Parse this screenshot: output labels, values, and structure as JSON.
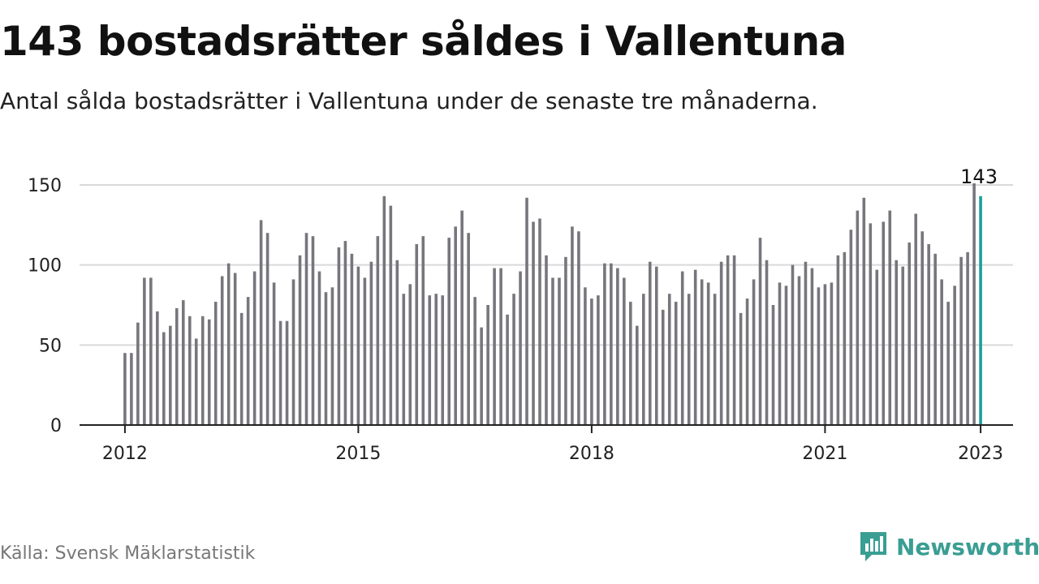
{
  "title": "143 bostadsrätter såldes i Vallentuna",
  "subtitle": "Antal sålda bostadsrätter i Vallentuna under de senaste tre månaderna.",
  "source": "Källa: Svensk Mäklarstatistik",
  "brand": {
    "name": "Newsworthy",
    "icon": "newsworthy-logo-icon",
    "color": "#3a9e93"
  },
  "chart_data": {
    "type": "bar",
    "title": "143 bostadsrätter såldes i Vallentuna",
    "subtitle": "Antal sålda bostadsrätter i Vallentuna under de senaste tre månaderna.",
    "xlabel": "",
    "ylabel": "",
    "ylim": [
      0,
      150
    ],
    "yticks": [
      0,
      50,
      100,
      150
    ],
    "xlim": [
      "2011-06",
      "2023-06"
    ],
    "xticks": [
      "2012",
      "2015",
      "2018",
      "2021",
      "2023"
    ],
    "grid": "horizontal",
    "legend": "none",
    "bar_color": "#76767c",
    "highlight_color": "#1a9e9a",
    "highlight_index": 132,
    "highlight_label": "143",
    "categories": [
      "2012-01",
      "2012-02",
      "2012-03",
      "2012-04",
      "2012-05",
      "2012-06",
      "2012-07",
      "2012-08",
      "2012-09",
      "2012-10",
      "2012-11",
      "2012-12",
      "2013-01",
      "2013-02",
      "2013-03",
      "2013-04",
      "2013-05",
      "2013-06",
      "2013-07",
      "2013-08",
      "2013-09",
      "2013-10",
      "2013-11",
      "2013-12",
      "2014-01",
      "2014-02",
      "2014-03",
      "2014-04",
      "2014-05",
      "2014-06",
      "2014-07",
      "2014-08",
      "2014-09",
      "2014-10",
      "2014-11",
      "2014-12",
      "2015-01",
      "2015-02",
      "2015-03",
      "2015-04",
      "2015-05",
      "2015-06",
      "2015-07",
      "2015-08",
      "2015-09",
      "2015-10",
      "2015-11",
      "2015-12",
      "2016-01",
      "2016-02",
      "2016-03",
      "2016-04",
      "2016-05",
      "2016-06",
      "2016-07",
      "2016-08",
      "2016-09",
      "2016-10",
      "2016-11",
      "2016-12",
      "2017-01",
      "2017-02",
      "2017-03",
      "2017-04",
      "2017-05",
      "2017-06",
      "2017-07",
      "2017-08",
      "2017-09",
      "2017-10",
      "2017-11",
      "2017-12",
      "2018-01",
      "2018-02",
      "2018-03",
      "2018-04",
      "2018-05",
      "2018-06",
      "2018-07",
      "2018-08",
      "2018-09",
      "2018-10",
      "2018-11",
      "2018-12",
      "2019-01",
      "2019-02",
      "2019-03",
      "2019-04",
      "2019-05",
      "2019-06",
      "2019-07",
      "2019-08",
      "2019-09",
      "2019-10",
      "2019-11",
      "2019-12",
      "2020-01",
      "2020-02",
      "2020-03",
      "2020-04",
      "2020-05",
      "2020-06",
      "2020-07",
      "2020-08",
      "2020-09",
      "2020-10",
      "2020-11",
      "2020-12",
      "2021-01",
      "2021-02",
      "2021-03",
      "2021-04",
      "2021-05",
      "2021-06",
      "2021-07",
      "2021-08",
      "2021-09",
      "2021-10",
      "2021-11",
      "2021-12",
      "2022-01",
      "2022-02",
      "2022-03",
      "2022-04",
      "2022-05",
      "2022-06",
      "2022-07",
      "2022-08",
      "2022-09",
      "2022-10",
      "2022-11",
      "2022-12",
      "2023-01"
    ],
    "values": [
      45,
      45,
      64,
      92,
      92,
      71,
      58,
      62,
      73,
      78,
      68,
      54,
      68,
      66,
      77,
      93,
      101,
      95,
      70,
      80,
      96,
      128,
      120,
      89,
      65,
      65,
      91,
      106,
      120,
      118,
      96,
      83,
      86,
      111,
      115,
      107,
      99,
      92,
      102,
      118,
      143,
      137,
      103,
      82,
      88,
      113,
      118,
      81,
      82,
      81,
      117,
      124,
      134,
      120,
      80,
      61,
      75,
      98,
      98,
      69,
      82,
      96,
      142,
      127,
      129,
      106,
      92,
      92,
      105,
      124,
      121,
      86,
      79,
      81,
      101,
      101,
      98,
      92,
      77,
      62,
      82,
      102,
      99,
      72,
      82,
      77,
      96,
      82,
      97,
      91,
      89,
      82,
      102,
      106,
      106,
      70,
      79,
      91,
      117,
      103,
      75,
      89,
      87,
      100,
      93,
      102,
      98,
      86,
      88,
      89,
      106,
      108,
      122,
      134,
      142,
      126,
      97,
      127,
      134,
      103,
      99,
      114,
      132,
      121,
      113,
      107,
      91,
      77,
      87,
      105,
      108,
      151,
      143
    ]
  }
}
